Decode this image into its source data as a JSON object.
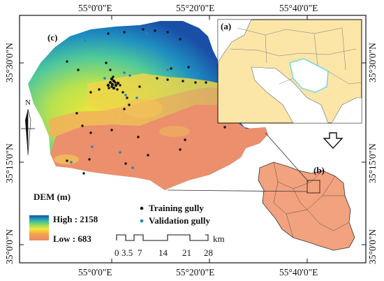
{
  "coords": {
    "top": [
      "55°0'0\"E",
      "55°20'0\"E",
      "55°40'0\"E"
    ],
    "bottom": [
      "55°0'0\"E",
      "55°20'0\"E",
      "55°40'0\"E"
    ],
    "left": [
      "35°30'0\"N",
      "35°15'0\"N",
      "35°0'0\"N"
    ],
    "right": [
      "35°30'0\"N",
      "35°15'0\"N",
      "35°0'0\"N"
    ]
  },
  "panel_labels": {
    "a": "(a)",
    "b": "(b)",
    "c": "(c)"
  },
  "north_label": "N",
  "dem": {
    "title": "DEM (m)",
    "high_label": "High : 2158",
    "low_label": "Low : 683",
    "colors": [
      "#1a4fa8",
      "#2ab3b0",
      "#9ddc5a",
      "#f2e63a",
      "#f2a24d",
      "#e8896a"
    ]
  },
  "points_legend": {
    "training": {
      "label": "Training gully",
      "color": "#111111"
    },
    "validation": {
      "label": "Validation gully",
      "color": "#2a7fc9"
    }
  },
  "scale_bar": {
    "ticks": [
      "0",
      "3.5",
      "7",
      "14",
      "21",
      "28"
    ],
    "unit": "km"
  },
  "colors": {
    "iran_fill": "#f2a27e",
    "context_land": "#fbe6a8",
    "sea": "#ffffff",
    "highlight": "#7fd7e0"
  }
}
